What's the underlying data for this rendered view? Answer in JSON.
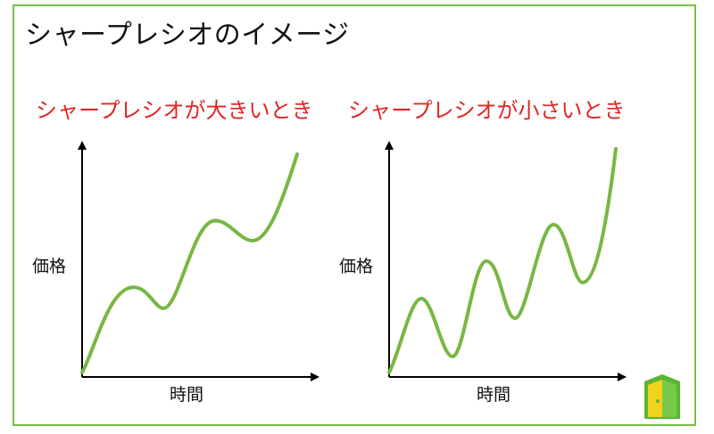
{
  "title": "シャープレシオのイメージ",
  "panels": [
    {
      "label": "シャープレシオが大きいとき",
      "y_label": "価格",
      "x_label": "時間"
    },
    {
      "label": "シャープレシオが小さいとき",
      "y_label": "価格",
      "x_label": "時間"
    }
  ],
  "colors": {
    "border": "#77c043",
    "curve": "#77b743",
    "panel_title": "#e02424",
    "axis": "#000000",
    "logo_green": "#5cb531",
    "logo_yellow": "#f2d21b"
  },
  "logo_icon": "door-logo-icon"
}
